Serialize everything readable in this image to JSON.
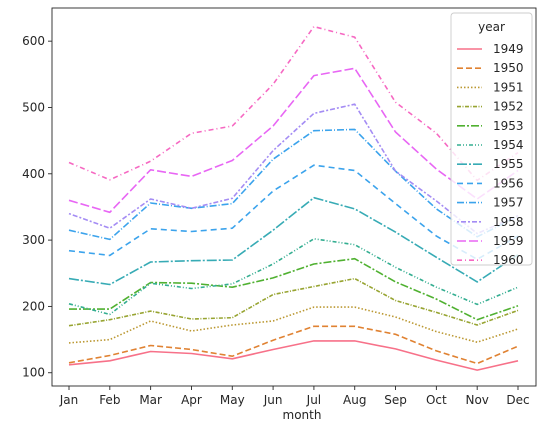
{
  "chart_data": {
    "type": "line",
    "title": "",
    "xlabel": "month",
    "ylabel": "",
    "categories": [
      "Jan",
      "Feb",
      "Mar",
      "Apr",
      "May",
      "Jun",
      "Jul",
      "Aug",
      "Sep",
      "Oct",
      "Nov",
      "Dec"
    ],
    "ylim": [
      80,
      650
    ],
    "yticks": [
      100,
      200,
      300,
      400,
      500,
      600
    ],
    "grid": false,
    "legend": {
      "title": "year",
      "placement": "top-right"
    },
    "series": [
      {
        "name": "1949",
        "color": "#f77189",
        "dash": "solid",
        "values": [
          112,
          118,
          132,
          129,
          121,
          135,
          148,
          148,
          136,
          119,
          104,
          118
        ]
      },
      {
        "name": "1950",
        "color": "#e08232",
        "dash": "dashed",
        "values": [
          115,
          126,
          141,
          135,
          125,
          149,
          170,
          170,
          158,
          133,
          114,
          140
        ]
      },
      {
        "name": "1951",
        "color": "#bb9832",
        "dash": "dotted",
        "values": [
          145,
          150,
          178,
          163,
          172,
          178,
          199,
          199,
          184,
          162,
          146,
          166
        ]
      },
      {
        "name": "1952",
        "color": "#97a431",
        "dash": "dashdot-dense",
        "values": [
          171,
          180,
          193,
          181,
          183,
          218,
          230,
          242,
          209,
          191,
          172,
          194
        ]
      },
      {
        "name": "1953",
        "color": "#50b131",
        "dash": "dashdot",
        "values": [
          196,
          196,
          236,
          235,
          229,
          243,
          264,
          272,
          237,
          211,
          180,
          201
        ]
      },
      {
        "name": "1954",
        "color": "#34ae91",
        "dash": "dashdotdot",
        "values": [
          204,
          188,
          235,
          227,
          234,
          264,
          302,
          293,
          259,
          229,
          203,
          229
        ]
      },
      {
        "name": "1955",
        "color": "#37abb5",
        "dash": "dashdot-long",
        "values": [
          242,
          233,
          267,
          269,
          270,
          315,
          364,
          347,
          312,
          274,
          237,
          278
        ]
      },
      {
        "name": "1956",
        "color": "#3ba3ec",
        "dash": "dashed-long",
        "values": [
          284,
          277,
          317,
          313,
          318,
          374,
          413,
          405,
          355,
          306,
          271,
          306
        ]
      },
      {
        "name": "1957",
        "color": "#3ba3ec",
        "dash": "dashdot-b",
        "values": [
          315,
          301,
          356,
          348,
          355,
          422,
          465,
          467,
          404,
          347,
          305,
          336
        ]
      },
      {
        "name": "1958",
        "color": "#a48cf4",
        "dash": "dotdash",
        "values": [
          340,
          318,
          362,
          348,
          363,
          435,
          491,
          505,
          404,
          359,
          310,
          337
        ]
      },
      {
        "name": "1959",
        "color": "#e866f4",
        "dash": "dashed-b",
        "values": [
          360,
          342,
          406,
          396,
          420,
          472,
          548,
          559,
          463,
          407,
          362,
          405
        ]
      },
      {
        "name": "1960",
        "color": "#f668c2",
        "dash": "dashdot-c",
        "values": [
          417,
          391,
          419,
          461,
          472,
          535,
          622,
          606,
          508,
          461,
          390,
          432
        ]
      }
    ]
  }
}
